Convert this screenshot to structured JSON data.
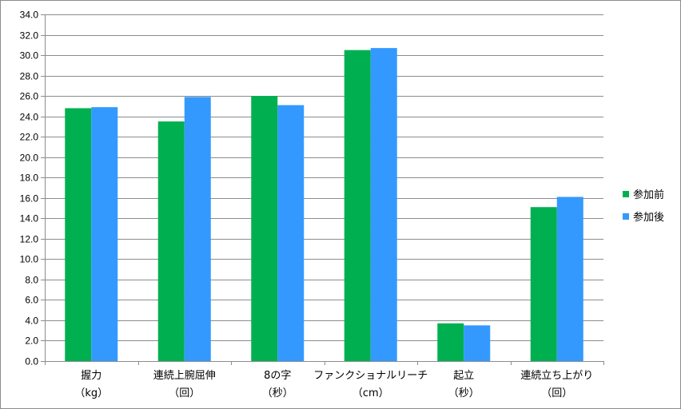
{
  "chart_data": {
    "type": "bar",
    "categories": [
      [
        "握力",
        "（kg）"
      ],
      [
        "連続上腕屈伸",
        "（回）"
      ],
      [
        "8の字",
        "（秒）"
      ],
      [
        "ファンクショナルリーチ",
        "（cm）"
      ],
      [
        "起立",
        "（秒）"
      ],
      [
        "連続立ち上がり",
        "（回）"
      ]
    ],
    "series": [
      {
        "name": "参加前",
        "color": "#00b050",
        "values": [
          24.8,
          23.5,
          26.0,
          30.5,
          3.7,
          15.1
        ]
      },
      {
        "name": "参加後",
        "color": "#3399ff",
        "values": [
          24.9,
          25.9,
          25.1,
          30.7,
          3.5,
          16.1
        ]
      }
    ],
    "ylim": [
      0,
      34
    ],
    "ytick_step": 2,
    "ytick_decimals": 1,
    "grid": true,
    "legend_position": "right"
  }
}
